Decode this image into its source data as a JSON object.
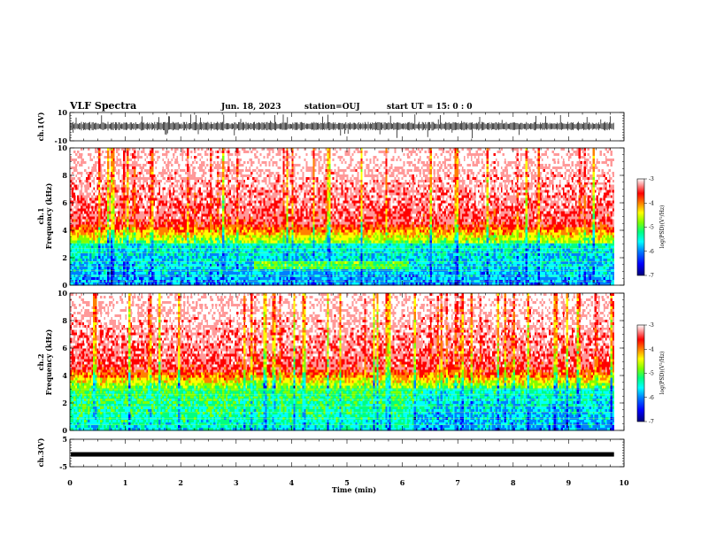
{
  "header": {
    "title": "VLF Spectra",
    "date": "Jun. 18, 2023",
    "station": "station=OUJ",
    "start": "start  UT =   15: 0  : 0"
  },
  "colors": {
    "spectrum": [
      "#00007a",
      "#0000ff",
      "#0080ff",
      "#00ffff",
      "#00ff80",
      "#80ff00",
      "#ffff00",
      "#ff8000",
      "#ff0000",
      "#ff9999",
      "#ffffff"
    ]
  },
  "chart_data": [
    {
      "type": "line",
      "panel": "ch1-waveform",
      "ylabel": "ch.1(V)",
      "ylim": [
        -10,
        10
      ],
      "yticks": [
        "10",
        "-10"
      ],
      "x_range_min": [
        0,
        10
      ],
      "data_extent_min": [
        0,
        9.82
      ],
      "baseline_v": 0
    },
    {
      "type": "heatmap",
      "panel": "ch1-spectrogram",
      "ylabel": "ch.1\nFrequency  (kHz)",
      "ylim": [
        0,
        10
      ],
      "yticks": [
        "0",
        "2",
        "4",
        "6",
        "8",
        "10"
      ],
      "x_range_min": [
        0,
        10
      ],
      "data_extent_min": [
        0,
        9.82
      ],
      "colorbar": {
        "label": "log(PSD)(V²/Hz)",
        "ticks": [
          "-3",
          "-4",
          "-5",
          "-6",
          "-7"
        ],
        "range": [
          -7,
          -3
        ]
      }
    },
    {
      "type": "heatmap",
      "panel": "ch2-spectrogram",
      "ylabel": "ch.2\nFrequency  (kHz)",
      "ylim": [
        0,
        10
      ],
      "yticks": [
        "0",
        "2",
        "4",
        "6",
        "8",
        "10"
      ],
      "x_range_min": [
        0,
        10
      ],
      "data_extent_min": [
        0,
        9.82
      ],
      "colorbar": {
        "label": "log(PSD)(V²/Hz)",
        "ticks": [
          "-3",
          "-4",
          "-5",
          "-6",
          "-7"
        ],
        "range": [
          -7,
          -3
        ]
      }
    },
    {
      "type": "line",
      "panel": "ch3-waveform",
      "ylabel": "ch.3(V)",
      "ylim": [
        -5,
        5
      ],
      "yticks": [
        "5",
        "-5"
      ],
      "x_range_min": [
        0,
        10
      ],
      "data_extent_min": [
        0,
        9.82
      ],
      "baseline_v": -0.5
    }
  ],
  "xaxis": {
    "label": "Time  (min)",
    "ticks": [
      "0",
      "1",
      "2",
      "3",
      "4",
      "5",
      "6",
      "7",
      "8",
      "9",
      "10"
    ]
  }
}
